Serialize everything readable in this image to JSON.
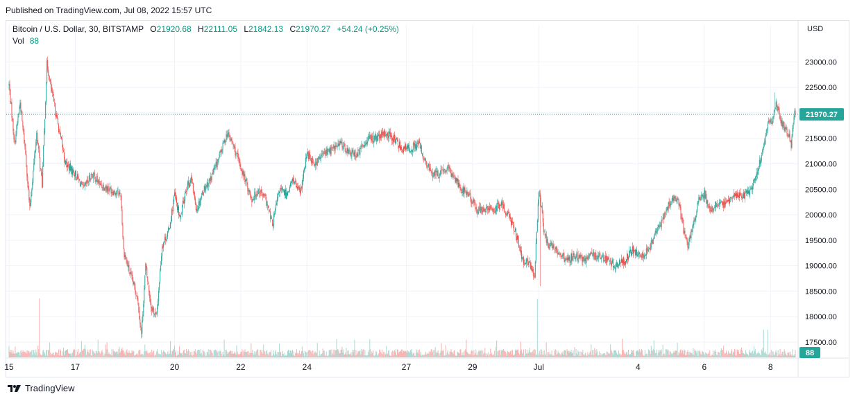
{
  "header": {
    "published": "Published on TradingView.com, Jul 08, 2022 15:57 UTC"
  },
  "legend": {
    "symbol": "Bitcoin / U.S. Dollar, 30, BITSTAMP",
    "open_label": "O",
    "open": "21920.68",
    "high_label": "H",
    "high": "22111.05",
    "low_label": "L",
    "low": "21842.13",
    "close_label": "C",
    "close": "21970.27",
    "change": "+54.24 (+0.25%)",
    "vol_label": "Vol",
    "vol_value": "88"
  },
  "currency": "USD",
  "last_price_label": "21970.27",
  "last_volume_label": "88",
  "footer": {
    "brand": "TradingView"
  },
  "colors": {
    "up": "#26a69a",
    "down": "#ef5350",
    "vol_up": "#a9d8d1",
    "vol_down": "#f7b3b1",
    "grid": "#f0f3fa",
    "axis_text": "#131722"
  },
  "chart_data": {
    "type": "candlestick",
    "y_range": [
      17200,
      23400
    ],
    "y_ticks": [
      17500,
      18000,
      18500,
      19000,
      19500,
      20000,
      20500,
      21000,
      21500,
      22000,
      22500,
      23000
    ],
    "y_tick_labels": [
      "17500.00",
      "18000.00",
      "18500.00",
      "19000.00",
      "19500.00",
      "20000.00",
      "20500.00",
      "21000.00",
      "21500.00",
      "22000.00",
      "22500.00",
      "23000.00"
    ],
    "x_ticks": [
      {
        "label": "15",
        "t": 0
      },
      {
        "label": "17",
        "t": 96
      },
      {
        "label": "20",
        "t": 240
      },
      {
        "label": "22",
        "t": 336
      },
      {
        "label": "24",
        "t": 432
      },
      {
        "label": "27",
        "t": 576
      },
      {
        "label": "29",
        "t": 672
      },
      {
        "label": "Jul",
        "t": 768
      },
      {
        "label": "4",
        "t": 912
      },
      {
        "label": "6",
        "t": 1008
      },
      {
        "label": "8",
        "t": 1104
      }
    ],
    "path": [
      [
        0,
        22550
      ],
      [
        8,
        21400
      ],
      [
        16,
        22200
      ],
      [
        24,
        21200
      ],
      [
        30,
        20100
      ],
      [
        40,
        21600
      ],
      [
        48,
        20600
      ],
      [
        55,
        22950
      ],
      [
        62,
        22400
      ],
      [
        72,
        21700
      ],
      [
        82,
        21000
      ],
      [
        96,
        20800
      ],
      [
        108,
        20500
      ],
      [
        120,
        20800
      ],
      [
        132,
        20600
      ],
      [
        146,
        20500
      ],
      [
        162,
        20400
      ],
      [
        166,
        19300
      ],
      [
        174,
        18900
      ],
      [
        186,
        18400
      ],
      [
        192,
        17650
      ],
      [
        198,
        19000
      ],
      [
        206,
        18200
      ],
      [
        214,
        18000
      ],
      [
        222,
        19400
      ],
      [
        232,
        19700
      ],
      [
        240,
        20400
      ],
      [
        248,
        19900
      ],
      [
        256,
        20500
      ],
      [
        264,
        20700
      ],
      [
        272,
        20100
      ],
      [
        282,
        20500
      ],
      [
        292,
        20700
      ],
      [
        304,
        21100
      ],
      [
        316,
        21600
      ],
      [
        324,
        21400
      ],
      [
        334,
        21000
      ],
      [
        342,
        20700
      ],
      [
        352,
        20300
      ],
      [
        362,
        20500
      ],
      [
        372,
        20300
      ],
      [
        382,
        19800
      ],
      [
        392,
        20500
      ],
      [
        402,
        20400
      ],
      [
        412,
        20700
      ],
      [
        422,
        20400
      ],
      [
        432,
        21200
      ],
      [
        444,
        21000
      ],
      [
        456,
        21200
      ],
      [
        470,
        21300
      ],
      [
        482,
        21400
      ],
      [
        494,
        21200
      ],
      [
        506,
        21200
      ],
      [
        520,
        21500
      ],
      [
        534,
        21500
      ],
      [
        546,
        21600
      ],
      [
        558,
        21500
      ],
      [
        570,
        21300
      ],
      [
        582,
        21300
      ],
      [
        594,
        21400
      ],
      [
        604,
        21000
      ],
      [
        614,
        20800
      ],
      [
        624,
        20800
      ],
      [
        636,
        20900
      ],
      [
        648,
        20700
      ],
      [
        656,
        20500
      ],
      [
        666,
        20400
      ],
      [
        678,
        20100
      ],
      [
        690,
        20100
      ],
      [
        702,
        20100
      ],
      [
        714,
        20200
      ],
      [
        724,
        20000
      ],
      [
        734,
        19700
      ],
      [
        744,
        19100
      ],
      [
        756,
        19000
      ],
      [
        762,
        18800
      ],
      [
        768,
        20500
      ],
      [
        772,
        20100
      ],
      [
        776,
        19600
      ],
      [
        784,
        19400
      ],
      [
        796,
        19300
      ],
      [
        808,
        19100
      ],
      [
        820,
        19200
      ],
      [
        832,
        19100
      ],
      [
        844,
        19200
      ],
      [
        856,
        19200
      ],
      [
        868,
        19100
      ],
      [
        880,
        19000
      ],
      [
        892,
        19100
      ],
      [
        904,
        19300
      ],
      [
        912,
        19200
      ],
      [
        920,
        19200
      ],
      [
        930,
        19400
      ],
      [
        940,
        19700
      ],
      [
        950,
        20000
      ],
      [
        960,
        20300
      ],
      [
        970,
        20300
      ],
      [
        978,
        19700
      ],
      [
        984,
        19400
      ],
      [
        992,
        19800
      ],
      [
        1000,
        20300
      ],
      [
        1008,
        20400
      ],
      [
        1016,
        20100
      ],
      [
        1026,
        20200
      ],
      [
        1036,
        20200
      ],
      [
        1046,
        20300
      ],
      [
        1056,
        20400
      ],
      [
        1066,
        20400
      ],
      [
        1076,
        20500
      ],
      [
        1086,
        20900
      ],
      [
        1094,
        21300
      ],
      [
        1100,
        21800
      ],
      [
        1106,
        21800
      ],
      [
        1112,
        22200
      ],
      [
        1118,
        21900
      ],
      [
        1124,
        21700
      ],
      [
        1130,
        21600
      ],
      [
        1134,
        21300
      ],
      [
        1138,
        21970
      ]
    ],
    "last_close": 21970.27,
    "high_marks": [
      {
        "t": 55,
        "v": 23000
      },
      {
        "t": 1110,
        "v": 22400
      }
    ],
    "low_marks": [
      {
        "t": 193,
        "v": 17600
      },
      {
        "t": 770,
        "v": 18600
      }
    ]
  }
}
